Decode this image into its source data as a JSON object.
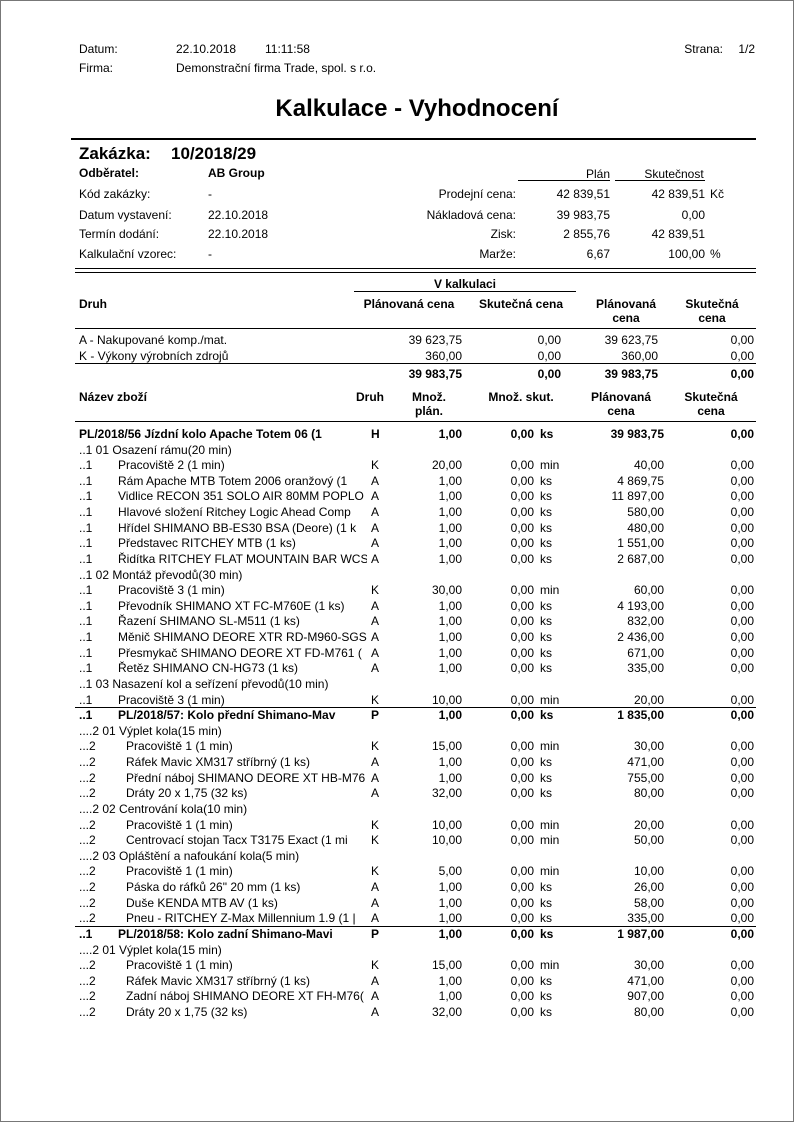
{
  "header": {
    "datum_label": "Datum:",
    "date": "22.10.2018",
    "time": "11:11:58",
    "strana_label": "Strana:",
    "strana": "1/2",
    "firma_label": "Firma:",
    "firma": "Demonstrační firma Trade, spol. s r.o."
  },
  "title": "Kalkulace - Vyhodnocení",
  "zakazka": {
    "label": "Zakázka:",
    "value": "10/2018/29"
  },
  "info": {
    "plan_head": "Plán",
    "skut_head": "Skutečnost",
    "left": [
      {
        "label": "Odběratel:",
        "value": "AB Group",
        "bold": true
      },
      {
        "label": "Kód zakázky:",
        "value": "-"
      },
      {
        "label": "Datum vystavení:",
        "value": "22.10.2018"
      },
      {
        "label": "Termín dodání:",
        "value": "22.10.2018"
      },
      {
        "label": "Kalkulační vzorec:",
        "value": "-"
      }
    ],
    "right": [
      {
        "label": "Prodejní cena:",
        "plan": "42 839,51",
        "skut": "42 839,51",
        "unit": "Kč"
      },
      {
        "label": "Nákladová cena:",
        "plan": "39 983,75",
        "skut": "0,00"
      },
      {
        "label": "Zisk:",
        "plan": "2 855,76",
        "skut": "42 839,51"
      },
      {
        "label": "Marže:",
        "plan": "6,67",
        "skut": "100,00",
        "unit": "%"
      }
    ]
  },
  "summary": {
    "group": "V kalkulaci",
    "columns": [
      "Druh",
      "Plánovaná cena",
      "Skutečná cena",
      "Plánovaná cena",
      "Skutečná cena"
    ],
    "rows": [
      [
        "A - Nakupované komp./mat.",
        "39 623,75",
        "0,00",
        "39 623,75",
        "0,00"
      ],
      [
        "K - Výkony výrobních zdrojů",
        "360,00",
        "0,00",
        "360,00",
        "0,00"
      ]
    ],
    "total": [
      "39 983,75",
      "0,00",
      "39 983,75",
      "0,00"
    ]
  },
  "items": {
    "columns": [
      "Název zboží",
      "Druh",
      "Množ. plán.",
      "Množ. skut.",
      "Plánovaná cena",
      "Skutečná cena"
    ],
    "rows": [
      {
        "bold": true,
        "name": "PL/2018/56 Jízdní kolo Apache Totem 06 (1",
        "druh": "H",
        "qp": "1,00",
        "qs": "0,00",
        "unit": "ks",
        "plan": "39 983,75",
        "skut": "0,00"
      },
      {
        "text": "..1 01 Osazení rámu(20 min)"
      },
      {
        "lvl": "..1",
        "name": "Pracoviště 2 (1 min)",
        "druh": "K",
        "qp": "20,00",
        "qs": "0,00",
        "unit": "min",
        "plan": "40,00",
        "skut": "0,00"
      },
      {
        "lvl": "..1",
        "name": "Rám Apache MTB Totem 2006 oranžový (1",
        "druh": "A",
        "qp": "1,00",
        "qs": "0,00",
        "unit": "ks",
        "plan": "4 869,75",
        "skut": "0,00"
      },
      {
        "lvl": "..1",
        "name": "Vidlice RECON 351 SOLO AIR 80MM POPLO",
        "druh": "A",
        "qp": "1,00",
        "qs": "0,00",
        "unit": "ks",
        "plan": "11 897,00",
        "skut": "0,00"
      },
      {
        "lvl": "..1",
        "name": "Hlavové složení Ritchey Logic Ahead Comp",
        "druh": "A",
        "qp": "1,00",
        "qs": "0,00",
        "unit": "ks",
        "plan": "580,00",
        "skut": "0,00"
      },
      {
        "lvl": "..1",
        "name": "Hřídel SHIMANO BB-ES30 BSA (Deore) (1 k",
        "druh": "A",
        "qp": "1,00",
        "qs": "0,00",
        "unit": "ks",
        "plan": "480,00",
        "skut": "0,00"
      },
      {
        "lvl": "..1",
        "name": "Představec RITCHEY MTB (1 ks)",
        "druh": "A",
        "qp": "1,00",
        "qs": "0,00",
        "unit": "ks",
        "plan": "1 551,00",
        "skut": "0,00"
      },
      {
        "lvl": "..1",
        "name": "Řidítka RITCHEY FLAT MOUNTAIN BAR WCS",
        "druh": "A",
        "qp": "1,00",
        "qs": "0,00",
        "unit": "ks",
        "plan": "2 687,00",
        "skut": "0,00"
      },
      {
        "text": "..1 02 Montáž převodů(30 min)"
      },
      {
        "lvl": "..1",
        "name": "Pracoviště 3 (1 min)",
        "druh": "K",
        "qp": "30,00",
        "qs": "0,00",
        "unit": "min",
        "plan": "60,00",
        "skut": "0,00"
      },
      {
        "lvl": "..1",
        "name": "Převodník SHIMANO XT FC-M760E (1 ks)",
        "druh": "A",
        "qp": "1,00",
        "qs": "0,00",
        "unit": "ks",
        "plan": "4 193,00",
        "skut": "0,00"
      },
      {
        "lvl": "..1",
        "name": "Řazení SHIMANO SL-M511 (1 ks)",
        "druh": "A",
        "qp": "1,00",
        "qs": "0,00",
        "unit": "ks",
        "plan": "832,00",
        "skut": "0,00"
      },
      {
        "lvl": "..1",
        "name": "Měnič SHIMANO DEORE XTR RD-M960-SGS",
        "druh": "A",
        "qp": "1,00",
        "qs": "0,00",
        "unit": "ks",
        "plan": "2 436,00",
        "skut": "0,00"
      },
      {
        "lvl": "..1",
        "name": "Přesmykač SHIMANO DEORE XT FD-M761 (",
        "druh": "A",
        "qp": "1,00",
        "qs": "0,00",
        "unit": "ks",
        "plan": "671,00",
        "skut": "0,00"
      },
      {
        "lvl": "..1",
        "name": "Řetěz SHIMANO CN-HG73 (1 ks)",
        "druh": "A",
        "qp": "1,00",
        "qs": "0,00",
        "unit": "ks",
        "plan": "335,00",
        "skut": "0,00"
      },
      {
        "text": "..1 03 Nasazení kol a seřízení převodů(10 min)"
      },
      {
        "lvl": "..1",
        "name": "Pracoviště 3 (1 min)",
        "druh": "K",
        "qp": "10,00",
        "qs": "0,00",
        "unit": "min",
        "plan": "20,00",
        "skut": "0,00"
      },
      {
        "bold": true,
        "lvl": "..1",
        "name": "PL/2018/57: Kolo přední Shimano-Mav",
        "druh": "P",
        "qp": "1,00",
        "qs": "0,00",
        "unit": "ks",
        "plan": "1 835,00",
        "skut": "0,00"
      },
      {
        "text": "....2 01 Výplet kola(15 min)"
      },
      {
        "lvl": "...2",
        "name": "Pracoviště 1 (1 min)",
        "druh": "K",
        "qp": "15,00",
        "qs": "0,00",
        "unit": "min",
        "plan": "30,00",
        "skut": "0,00"
      },
      {
        "lvl": "...2",
        "name": "Ráfek Mavic XM317 stříbrný (1 ks)",
        "druh": "A",
        "qp": "1,00",
        "qs": "0,00",
        "unit": "ks",
        "plan": "471,00",
        "skut": "0,00"
      },
      {
        "lvl": "...2",
        "name": "Přední náboj SHIMANO DEORE XT HB-M76",
        "druh": "A",
        "qp": "1,00",
        "qs": "0,00",
        "unit": "ks",
        "plan": "755,00",
        "skut": "0,00"
      },
      {
        "lvl": "...2",
        "name": "Dráty 20 x 1,75 (32 ks)",
        "druh": "A",
        "qp": "32,00",
        "qs": "0,00",
        "unit": "ks",
        "plan": "80,00",
        "skut": "0,00"
      },
      {
        "text": "....2 02 Centrování kola(10 min)"
      },
      {
        "lvl": "...2",
        "name": "Pracoviště 1 (1 min)",
        "druh": "K",
        "qp": "10,00",
        "qs": "0,00",
        "unit": "min",
        "plan": "20,00",
        "skut": "0,00"
      },
      {
        "lvl": "...2",
        "name": "Centrovací stojan Tacx T3175 Exact (1 mi",
        "druh": "K",
        "qp": "10,00",
        "qs": "0,00",
        "unit": "min",
        "plan": "50,00",
        "skut": "0,00"
      },
      {
        "text": "....2 03 Opláštění a nafoukání kola(5 min)"
      },
      {
        "lvl": "...2",
        "name": "Pracoviště 1 (1 min)",
        "druh": "K",
        "qp": "5,00",
        "qs": "0,00",
        "unit": "min",
        "plan": "10,00",
        "skut": "0,00"
      },
      {
        "lvl": "...2",
        "name": "Páska do ráfků 26\" 20 mm (1 ks)",
        "druh": "A",
        "qp": "1,00",
        "qs": "0,00",
        "unit": "ks",
        "plan": "26,00",
        "skut": "0,00"
      },
      {
        "lvl": "...2",
        "name": "Duše KENDA MTB AV (1 ks)",
        "druh": "A",
        "qp": "1,00",
        "qs": "0,00",
        "unit": "ks",
        "plan": "58,00",
        "skut": "0,00"
      },
      {
        "lvl": "...2",
        "name": "Pneu - RITCHEY Z-Max Millennium 1.9 (1 |",
        "druh": "A",
        "qp": "1,00",
        "qs": "0,00",
        "unit": "ks",
        "plan": "335,00",
        "skut": "0,00"
      },
      {
        "bold": true,
        "lvl": "..1",
        "name": "PL/2018/58: Kolo zadní Shimano-Mavi",
        "druh": "P",
        "qp": "1,00",
        "qs": "0,00",
        "unit": "ks",
        "plan": "1 987,00",
        "skut": "0,00"
      },
      {
        "text": "....2 01 Výplet kola(15 min)"
      },
      {
        "lvl": "...2",
        "name": "Pracoviště 1 (1 min)",
        "druh": "K",
        "qp": "15,00",
        "qs": "0,00",
        "unit": "min",
        "plan": "30,00",
        "skut": "0,00"
      },
      {
        "lvl": "...2",
        "name": "Ráfek Mavic XM317 stříbrný (1 ks)",
        "druh": "A",
        "qp": "1,00",
        "qs": "0,00",
        "unit": "ks",
        "plan": "471,00",
        "skut": "0,00"
      },
      {
        "lvl": "...2",
        "name": "Zadní náboj SHIMANO DEORE XT FH-M76(",
        "druh": "A",
        "qp": "1,00",
        "qs": "0,00",
        "unit": "ks",
        "plan": "907,00",
        "skut": "0,00"
      },
      {
        "lvl": "...2",
        "name": "Dráty 20 x 1,75 (32 ks)",
        "druh": "A",
        "qp": "32,00",
        "qs": "0,00",
        "unit": "ks",
        "plan": "80,00",
        "skut": "0,00"
      }
    ]
  }
}
